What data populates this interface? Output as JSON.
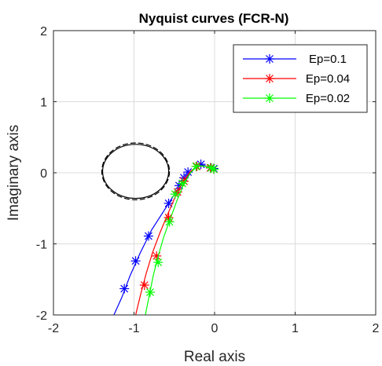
{
  "chart_data": {
    "type": "line",
    "title": "Nyquist curves (FCR-N)",
    "xlabel": "Real axis",
    "ylabel": "Imaginary axis",
    "xlim": [
      -2,
      2
    ],
    "ylim": [
      -2,
      2
    ],
    "xticks": [
      -2,
      -1,
      0,
      1,
      2
    ],
    "yticks": [
      -2,
      -1,
      0,
      1,
      2
    ],
    "grid": true,
    "legend_position": "top-right",
    "series": [
      {
        "name": "Ep=0.1",
        "color": "#0000ff",
        "marker": "*",
        "line": [
          [
            -1.25,
            -2.0
          ],
          [
            -1.15,
            -1.75
          ],
          [
            -1.05,
            -1.45
          ],
          [
            -0.92,
            -1.12
          ],
          [
            -0.78,
            -0.8
          ],
          [
            -0.62,
            -0.52
          ],
          [
            -0.48,
            -0.27
          ],
          [
            -0.36,
            -0.08
          ],
          [
            -0.25,
            0.06
          ],
          [
            -0.15,
            0.11
          ],
          [
            -0.06,
            0.08
          ],
          [
            0.0,
            0.05
          ]
        ],
        "markers": [
          [
            -1.12,
            -1.63
          ],
          [
            -0.98,
            -1.24
          ],
          [
            -0.82,
            -0.89
          ],
          [
            -0.57,
            -0.43
          ],
          [
            -0.44,
            -0.18
          ],
          [
            -0.38,
            -0.07
          ],
          [
            -0.33,
            0.01
          ],
          [
            -0.17,
            0.12
          ],
          [
            -0.05,
            0.07
          ],
          [
            -0.01,
            0.06
          ]
        ]
      },
      {
        "name": "Ep=0.04",
        "color": "#ff0000",
        "marker": "*",
        "line": [
          [
            -0.98,
            -2.0
          ],
          [
            -0.92,
            -1.72
          ],
          [
            -0.85,
            -1.42
          ],
          [
            -0.77,
            -1.12
          ],
          [
            -0.68,
            -0.85
          ],
          [
            -0.58,
            -0.58
          ],
          [
            -0.49,
            -0.34
          ],
          [
            -0.4,
            -0.14
          ],
          [
            -0.3,
            0.02
          ],
          [
            -0.2,
            0.1
          ],
          [
            -0.09,
            0.09
          ],
          [
            0.0,
            0.05
          ]
        ],
        "markers": [
          [
            -0.87,
            -1.58
          ],
          [
            -0.72,
            -1.17
          ],
          [
            -0.57,
            -0.63
          ],
          [
            -0.46,
            -0.27
          ],
          [
            -0.38,
            -0.12
          ],
          [
            -0.22,
            0.09
          ],
          [
            -0.05,
            0.07
          ],
          [
            -0.01,
            0.05
          ]
        ]
      },
      {
        "name": "Ep=0.02",
        "color": "#00ff00",
        "marker": "*",
        "line": [
          [
            -0.86,
            -2.0
          ],
          [
            -0.81,
            -1.72
          ],
          [
            -0.76,
            -1.44
          ],
          [
            -0.7,
            -1.17
          ],
          [
            -0.63,
            -0.9
          ],
          [
            -0.55,
            -0.65
          ],
          [
            -0.47,
            -0.4
          ],
          [
            -0.39,
            -0.18
          ],
          [
            -0.3,
            0.0
          ],
          [
            -0.21,
            0.1
          ],
          [
            -0.1,
            0.09
          ],
          [
            0.0,
            0.05
          ]
        ],
        "markers": [
          [
            -0.8,
            -1.68
          ],
          [
            -0.7,
            -1.26
          ],
          [
            -0.56,
            -0.69
          ],
          [
            -0.49,
            -0.3
          ],
          [
            -0.4,
            -0.15
          ],
          [
            -0.23,
            0.09
          ],
          [
            -0.04,
            0.07
          ],
          [
            -0.01,
            0.05
          ]
        ]
      },
      {
        "color": "#000000",
        "style": "dashed",
        "shape": "ellipse",
        "center": [
          -0.98,
          0.02
        ],
        "radius_x": 0.42,
        "radius_y": 0.4
      },
      {
        "color": "#000000",
        "style": "solid",
        "shape": "ellipse",
        "center": [
          -0.98,
          0.02
        ],
        "radius_x": 0.41,
        "radius_y": 0.38
      }
    ]
  }
}
